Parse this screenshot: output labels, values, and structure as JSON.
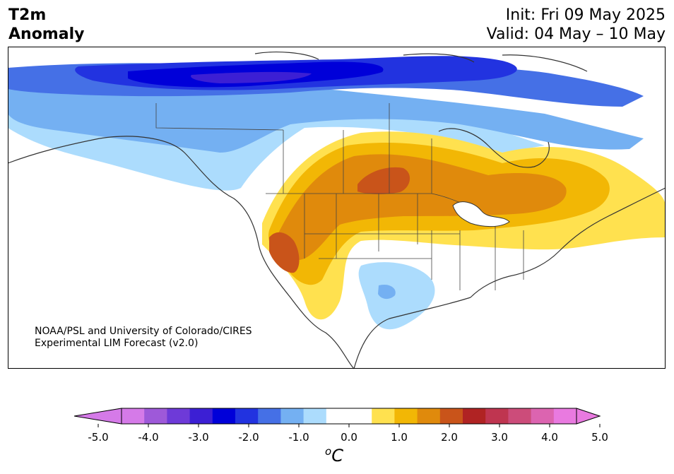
{
  "header": {
    "title_line1": "T2m",
    "title_line2": "Anomaly",
    "init": "Init: Fri 09 May 2025",
    "valid": "Valid: 04 May – 10 May"
  },
  "credit": {
    "line1": "NOAA/PSL and University of Colorado/CIRES",
    "line2": "Experimental LIM Forecast (v2.0)"
  },
  "colorbar": {
    "ticks": [
      "-5.0",
      "-4.0",
      "-3.0",
      "-2.0",
      "-1.0",
      "0.0",
      "1.0",
      "2.0",
      "3.0",
      "4.0",
      "5.0"
    ],
    "unit_base": "C",
    "unit_sup": "o",
    "colors": [
      "#d57ae8",
      "#9e59d9",
      "#6e3ad8",
      "#3c1fd4",
      "#0000d9",
      "#2233e0",
      "#4570e6",
      "#74b0f2",
      "#acdcfd",
      "#ffffff",
      "#ffffff",
      "#ffe14f",
      "#f2b705",
      "#e08a0c",
      "#c9541a",
      "#b02323",
      "#bf3550",
      "#cc4c7a",
      "#dc64b0",
      "#e97ae0"
    ],
    "under_color": "#d57ae8",
    "over_color": "#e97ae0"
  },
  "legend": {
    "cold_strong": "#0000d9",
    "cold_medium": "#2233e0",
    "cold_light": "#74b0f2",
    "cold_faint": "#acdcfd",
    "warm_faint": "#ffe14f",
    "warm_light": "#f2b705",
    "warm_medium": "#e08a0c",
    "warm_strong": "#c9541a"
  }
}
